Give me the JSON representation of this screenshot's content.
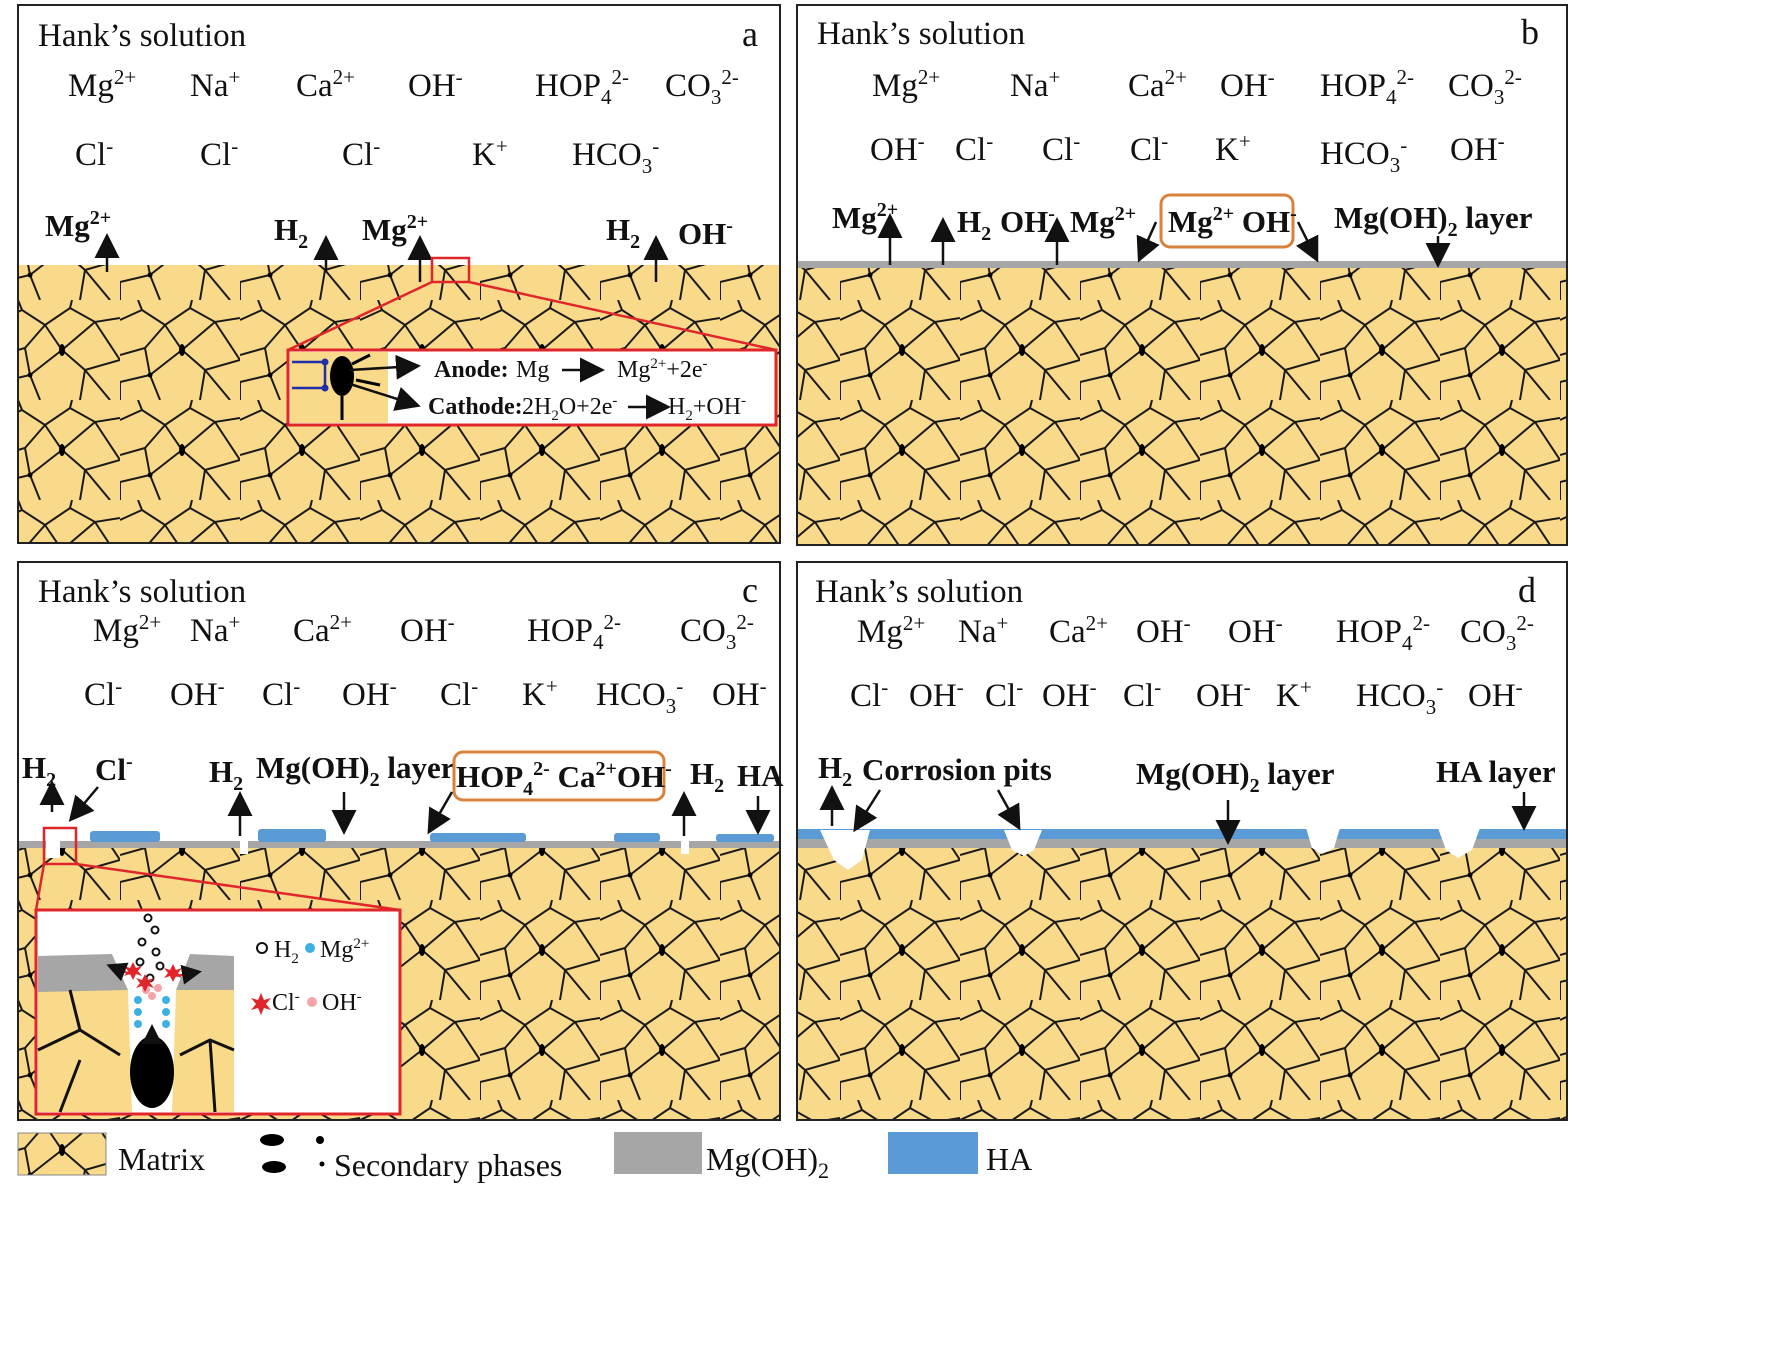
{
  "panels": [
    {
      "id": "a",
      "label": "a",
      "solution": "Hank’s solution",
      "ions_row1": [
        "Mg2+",
        "Na+",
        "Ca2+",
        "OH-",
        "HOP42-",
        "CO32-"
      ],
      "ions_row2": [
        "Cl-",
        "Cl-",
        "Cl-",
        "K+",
        "HCO3-"
      ],
      "callouts": [
        "Mg2+",
        "H2",
        "Mg2+",
        "H2",
        "OH-"
      ],
      "inset": {
        "anode_label": "Anode:",
        "anode_reaction": "Mg → Mg2+ + 2e-",
        "cathode_label": "Cathode:",
        "cathode_reaction": "2H2O+2e- → H2+OH-"
      }
    },
    {
      "id": "b",
      "label": "b",
      "solution": "Hank’s solution",
      "ions_row1": [
        "Mg2+",
        "Na+",
        "Ca2+",
        "OH-",
        "HOP42-",
        "CO32-"
      ],
      "ions_row2": [
        "OH-",
        "Cl-",
        "Cl-",
        "Cl-",
        "K+",
        "HCO3-",
        "OH-"
      ],
      "callouts": [
        "Mg2+",
        "H2",
        "OH-",
        "Mg2+",
        "Mg2+ OH-",
        "Mg(OH)2 layer"
      ]
    },
    {
      "id": "c",
      "label": "c",
      "solution": "Hank’s solution",
      "ions_row1": [
        "Mg2+",
        "Na+",
        "Ca2+",
        "OH-",
        "HOP42-",
        "CO32-"
      ],
      "ions_row2": [
        "Cl-",
        "OH-",
        "Cl-",
        "OH-",
        "Cl-",
        "K+",
        "HCO3-",
        "OH-"
      ],
      "callouts": [
        "H2",
        "Cl-",
        "H2",
        "Mg(OH)2 layer",
        "HOP42- Ca2+ OH-",
        "H2",
        "HA"
      ],
      "inset": {
        "legend": [
          "H2",
          "Mg2+",
          "Cl-",
          "OH-"
        ]
      }
    },
    {
      "id": "d",
      "label": "d",
      "solution": "Hank’s solution",
      "ions_row1": [
        "Mg2+",
        "Na+",
        "Ca2+",
        "OH-",
        "OH-",
        "HOP42-",
        "CO32-"
      ],
      "ions_row2": [
        "Cl-",
        "OH-",
        "Cl-",
        "OH-",
        "Cl-",
        "OH-",
        "K+",
        "HCO3-",
        "OH-"
      ],
      "callouts": [
        "H2",
        "Corrosion pits",
        "Mg(OH)2 layer",
        "HA layer"
      ]
    }
  ],
  "legend": [
    {
      "label": "Matrix",
      "color": "#f9d98a"
    },
    {
      "label": "Secondary phases",
      "color": "#000000"
    },
    {
      "label": "Mg(OH)2",
      "color": "#a6a6a6"
    },
    {
      "label": "HA",
      "color": "#5b9bd5"
    }
  ],
  "colors": {
    "matrix": "#f9d98a",
    "grain_line": "#1a1a1a",
    "mgoh2": "#a6a6a6",
    "ha": "#5b9bd5",
    "inset_border": "#e0262a",
    "highlight_border": "#d9823b"
  }
}
